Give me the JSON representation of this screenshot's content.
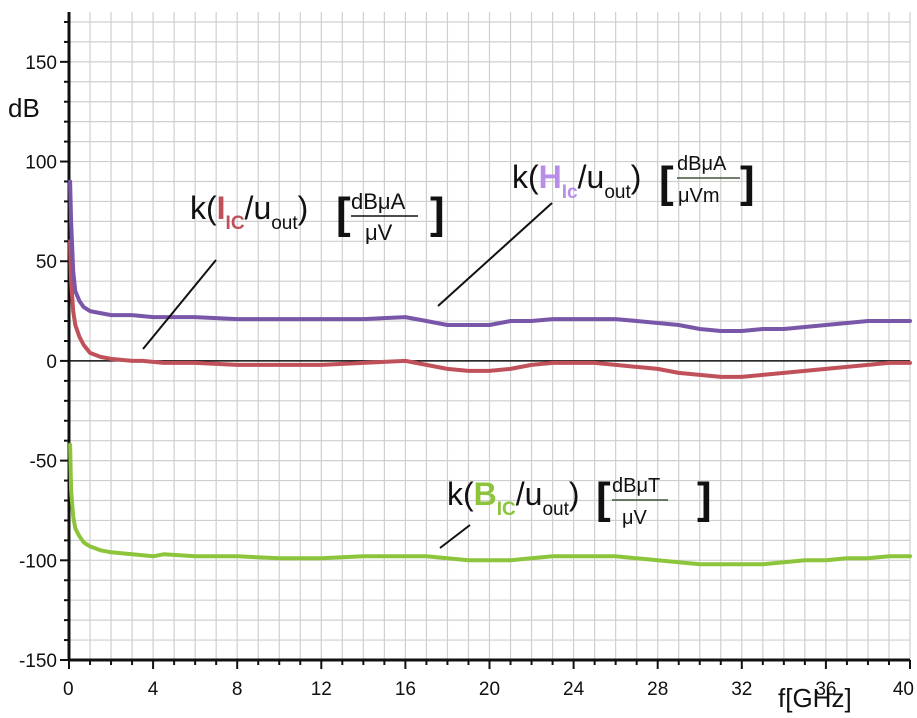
{
  "chart_data": {
    "type": "line",
    "title": "",
    "xlabel": "f[GHz]",
    "ylabel": "dB",
    "xlim": [
      0,
      40
    ],
    "ylim": [
      -150,
      175
    ],
    "grid": true,
    "x_ticks": [
      "0",
      "4",
      "8",
      "12",
      "16",
      "20",
      "24",
      "28",
      "32",
      "36",
      "40"
    ],
    "y_ticks": [
      "150",
      "100",
      "50",
      "0",
      "-50",
      "-100",
      "-150"
    ],
    "colors": {
      "I": "#c0505a",
      "H": "#7a56a8",
      "B": "#8cc43c"
    },
    "series": [
      {
        "key": "I",
        "x": [
          0.05,
          0.1,
          0.2,
          0.3,
          0.5,
          0.7,
          1.0,
          1.5,
          2,
          3,
          3.5,
          4.5,
          6,
          8,
          10,
          12,
          14,
          16,
          17,
          18,
          19,
          20,
          21,
          22,
          23,
          24,
          25,
          26,
          27,
          28,
          29,
          30,
          31,
          32,
          33,
          34,
          35,
          36,
          37,
          38,
          39,
          40
        ],
        "y": [
          60,
          40,
          25,
          18,
          12,
          8,
          4,
          2,
          1,
          0,
          0,
          -1,
          -1,
          -2,
          -2,
          -2,
          -1,
          0,
          -2,
          -4,
          -5,
          -5,
          -4,
          -2,
          -1,
          -1,
          -1,
          -2,
          -3,
          -4,
          -6,
          -7,
          -8,
          -8,
          -7,
          -6,
          -5,
          -4,
          -3,
          -2,
          -1,
          -1
        ]
      },
      {
        "key": "H",
        "x": [
          0.05,
          0.1,
          0.2,
          0.3,
          0.5,
          0.7,
          1.0,
          1.5,
          2,
          3,
          4,
          6,
          8,
          10,
          12,
          14,
          16,
          17,
          18,
          19,
          20,
          21,
          22,
          23,
          24,
          25,
          26,
          27,
          28,
          29,
          30,
          31,
          32,
          33,
          34,
          35,
          36,
          37,
          38,
          39,
          40
        ],
        "y": [
          90,
          70,
          45,
          35,
          30,
          27,
          25,
          24,
          23,
          23,
          22,
          22,
          21,
          21,
          21,
          21,
          22,
          20,
          18,
          18,
          18,
          20,
          20,
          21,
          21,
          21,
          21,
          20,
          19,
          18,
          16,
          15,
          15,
          16,
          16,
          17,
          18,
          19,
          20,
          20,
          20
        ]
      },
      {
        "key": "B",
        "x": [
          0.05,
          0.1,
          0.2,
          0.3,
          0.5,
          0.7,
          1.0,
          1.5,
          2,
          3,
          4,
          4.5,
          6,
          8,
          10,
          12,
          14,
          16,
          17,
          18,
          19,
          20,
          21,
          22,
          23,
          24,
          25,
          26,
          27,
          28,
          29,
          30,
          31,
          32,
          33,
          34,
          35,
          36,
          37,
          38,
          39,
          40
        ],
        "y": [
          -42,
          -65,
          -78,
          -84,
          -88,
          -91,
          -93,
          -95,
          -96,
          -97,
          -98,
          -97,
          -98,
          -98,
          -99,
          -99,
          -98,
          -98,
          -98,
          -99,
          -100,
          -100,
          -100,
          -99,
          -98,
          -98,
          -98,
          -98,
          -99,
          -100,
          -101,
          -102,
          -102,
          -102,
          -102,
          -101,
          -100,
          -100,
          -99,
          -99,
          -98,
          -98
        ]
      }
    ],
    "annotations": [
      {
        "key": "I",
        "prefix": "k(",
        "symbol": "I",
        "sub": "IC",
        "mid": "/u",
        "mid_sub": "out",
        "close": ")",
        "unit_num": "dBμA",
        "unit_den": "μV"
      },
      {
        "key": "H",
        "prefix": "k(",
        "symbol": "H",
        "sub": "Ic",
        "mid": "/u",
        "mid_sub": "out",
        "close": ")",
        "unit_num": "dBμA",
        "unit_den": "μVm"
      },
      {
        "key": "B",
        "prefix": "k(",
        "symbol": "B",
        "sub": "IC",
        "mid": "/u",
        "mid_sub": "out",
        "close": ")",
        "unit_num": "dBμT",
        "unit_den": "μV"
      }
    ]
  }
}
